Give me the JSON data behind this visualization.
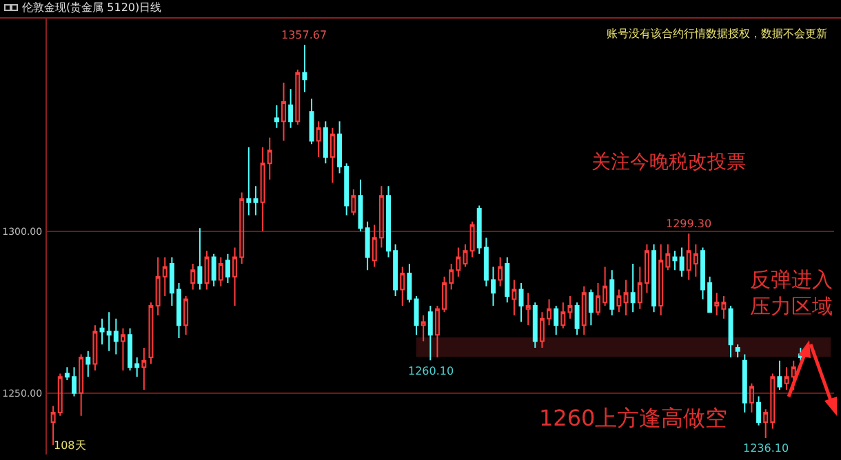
{
  "chart_data": {
    "type": "candlestick",
    "title": "伦敦金现(贵金属 5120)日线",
    "categories": [
      null,
      null,
      null,
      null,
      null,
      null,
      null,
      null,
      null,
      null,
      null,
      null,
      null,
      null,
      null,
      null,
      null,
      null,
      null,
      null,
      null,
      null,
      null,
      null,
      null,
      null,
      null,
      null,
      null,
      null,
      null,
      null,
      null,
      null,
      null,
      null,
      null,
      null,
      null,
      null,
      null,
      null,
      null,
      null,
      null,
      null,
      null,
      null,
      null,
      null,
      null,
      null,
      null,
      null,
      null,
      null,
      null,
      null,
      null,
      null,
      null,
      null,
      null,
      null,
      null,
      null,
      null,
      null,
      null,
      null,
      null,
      null,
      null,
      null,
      null,
      null,
      null,
      null,
      null,
      null,
      null,
      null,
      null,
      null,
      null,
      null,
      null,
      null,
      null,
      null,
      null,
      null,
      null,
      null,
      null,
      null,
      null,
      null,
      null,
      null,
      null,
      null,
      null,
      null,
      null,
      null,
      null,
      null
    ],
    "ohlc": [
      [
        1241,
        1246,
        1234,
        1244
      ],
      [
        1244,
        1256,
        1243,
        1255
      ],
      [
        1256,
        1258,
        1254,
        1255
      ],
      [
        1255,
        1258,
        1249,
        1250
      ],
      [
        1250,
        1262,
        1243,
        1261
      ],
      [
        1261,
        1263,
        1255,
        1259
      ],
      [
        1259,
        1271,
        1257,
        1269
      ],
      [
        1270,
        1273,
        1265,
        1269
      ],
      [
        1269,
        1275,
        1263,
        1268
      ],
      [
        1269,
        1273,
        1262,
        1266
      ],
      [
        1266,
        1270,
        1257,
        1268
      ],
      [
        1268,
        1270,
        1257,
        1258
      ],
      [
        1259,
        1261,
        1255,
        1258
      ],
      [
        1258,
        1264,
        1251,
        1260
      ],
      [
        1261,
        1278,
        1259,
        1277
      ],
      [
        1277,
        1292,
        1274,
        1286
      ],
      [
        1286,
        1292,
        1280,
        1289
      ],
      [
        1290,
        1292,
        1277,
        1281
      ],
      [
        1282,
        1284,
        1267,
        1271
      ],
      [
        1271,
        1280,
        1268,
        1279
      ],
      [
        1284,
        1290,
        1282,
        1288
      ],
      [
        1289,
        1301,
        1282,
        1284
      ],
      [
        1284,
        1294,
        1282,
        1292
      ],
      [
        1292,
        1293,
        1283,
        1285
      ],
      [
        1285,
        1292,
        1283,
        1290
      ],
      [
        1291,
        1293,
        1284,
        1286
      ],
      [
        1286,
        1295,
        1277,
        1292
      ],
      [
        1292,
        1312,
        1290,
        1310
      ],
      [
        1310,
        1326,
        1305,
        1309
      ],
      [
        1310,
        1314,
        1305,
        1309
      ],
      [
        1309,
        1326,
        1300,
        1321
      ],
      [
        1321,
        1329,
        1316,
        1325
      ],
      [
        1335,
        1339,
        1332,
        1334
      ],
      [
        1334,
        1346,
        1328,
        1340
      ],
      [
        1339,
        1344,
        1332,
        1334
      ],
      [
        1334,
        1350,
        1333,
        1349
      ],
      [
        1349,
        1357.67,
        1343,
        1347
      ],
      [
        1337,
        1341,
        1327,
        1328
      ],
      [
        1328,
        1334,
        1323,
        1332
      ],
      [
        1332,
        1334,
        1321,
        1323
      ],
      [
        1323,
        1332,
        1315,
        1330
      ],
      [
        1330,
        1334,
        1318,
        1320
      ],
      [
        1320,
        1321,
        1305,
        1308
      ],
      [
        1306,
        1313,
        1305,
        1311
      ],
      [
        1311,
        1316,
        1300,
        1301
      ],
      [
        1301,
        1303,
        1288,
        1292
      ],
      [
        1291,
        1302,
        1289,
        1298
      ],
      [
        1298,
        1314,
        1295,
        1311
      ],
      [
        1311,
        1314,
        1292,
        1294
      ],
      [
        1294,
        1296,
        1280,
        1282
      ],
      [
        1282,
        1289,
        1277,
        1287
      ],
      [
        1287,
        1290,
        1278,
        1279
      ],
      [
        1279,
        1280,
        1268,
        1271
      ],
      [
        1271,
        1274,
        1266,
        1272
      ],
      [
        1275,
        1277,
        1260.1,
        1268
      ],
      [
        1268,
        1277,
        1261,
        1276
      ],
      [
        1276,
        1286,
        1275,
        1284
      ],
      [
        1284,
        1290,
        1282,
        1288
      ],
      [
        1288,
        1295,
        1286,
        1292
      ],
      [
        1290,
        1296,
        1289,
        1294
      ],
      [
        1294,
        1303,
        1292,
        1302
      ],
      [
        1307,
        1308,
        1293,
        1295
      ],
      [
        1295,
        1298,
        1283,
        1285
      ],
      [
        1285,
        1289,
        1277,
        1281
      ],
      [
        1285,
        1292,
        1283,
        1289
      ],
      [
        1290,
        1292,
        1278,
        1280
      ],
      [
        1279,
        1285,
        1274,
        1282
      ],
      [
        1282,
        1284,
        1272,
        1277
      ],
      [
        1276,
        1281,
        1271,
        1277
      ],
      [
        1277,
        1278,
        1264,
        1266
      ],
      [
        1266,
        1275,
        1264,
        1273
      ],
      [
        1273,
        1279,
        1271,
        1276
      ],
      [
        1276,
        1277,
        1268,
        1271
      ],
      [
        1271,
        1278,
        1270,
        1275
      ],
      [
        1275,
        1280,
        1273,
        1277
      ],
      [
        1277,
        1278,
        1268,
        1270
      ],
      [
        1271,
        1283,
        1268,
        1281
      ],
      [
        1281,
        1282,
        1271,
        1275
      ],
      [
        1275,
        1284,
        1274,
        1280
      ],
      [
        1278,
        1289,
        1277,
        1283
      ],
      [
        1285,
        1288,
        1274,
        1276
      ],
      [
        1277,
        1282,
        1275,
        1280
      ],
      [
        1278,
        1285,
        1274,
        1281
      ],
      [
        1281,
        1290,
        1275,
        1278
      ],
      [
        1278,
        1289,
        1276,
        1284
      ],
      [
        1284,
        1296,
        1281,
        1294
      ],
      [
        1294,
        1296,
        1275,
        1277
      ],
      [
        1277,
        1296,
        1274,
        1291
      ],
      [
        1289,
        1296,
        1288,
        1293
      ],
      [
        1292,
        1294,
        1288,
        1291
      ],
      [
        1292,
        1295,
        1286,
        1288
      ],
      [
        1288,
        1299.3,
        1285,
        1294
      ],
      [
        1290,
        1296,
        1286,
        1293
      ],
      [
        1294,
        1295,
        1279,
        1282
      ],
      [
        1284,
        1286,
        1275,
        1275
      ],
      [
        1277,
        1281,
        1274,
        1278
      ],
      [
        1276,
        1280,
        1273,
        1278
      ],
      [
        1276,
        1277,
        1261,
        1265
      ],
      [
        1264,
        1265,
        1261,
        1263
      ],
      [
        1260,
        1262,
        1244,
        1247
      ],
      [
        1247,
        1253,
        1244,
        1252
      ],
      [
        1247,
        1249,
        1240,
        1241
      ],
      [
        1241,
        1245,
        1236.1,
        1244
      ],
      [
        1241,
        1256,
        1239,
        1255
      ],
      [
        1255,
        1260,
        1251,
        1252
      ],
      [
        1253,
        1258,
        1251,
        1255
      ],
      [
        1255,
        1260,
        1251,
        1258
      ],
      [
        1262,
        1264,
        1260,
        1261
      ]
    ],
    "ylim": [
      1231,
      1366
    ],
    "yticks": [
      {
        "value": 1250,
        "label": "1250.00"
      },
      {
        "value": 1300,
        "label": "1300.00"
      }
    ],
    "grid": "y",
    "tick_labels": "y",
    "bands": [
      {
        "axis": "y",
        "from": 1261.4,
        "to": 1267,
        "color": "#b03030"
      }
    ],
    "annotations": [
      {
        "text": "1357.67",
        "y": 1357.67
      },
      {
        "text": "1299.30",
        "y": 1299.3
      },
      {
        "text": "1260.10",
        "y": 1260.1
      },
      {
        "text": "1236.10",
        "y": 1236.1
      },
      "108天",
      "账号没有该合约行情数据授权，数据不会更新",
      "关注今晚税改投票",
      "反弹进入压力区域",
      "1260上方逢高做空"
    ]
  }
}
